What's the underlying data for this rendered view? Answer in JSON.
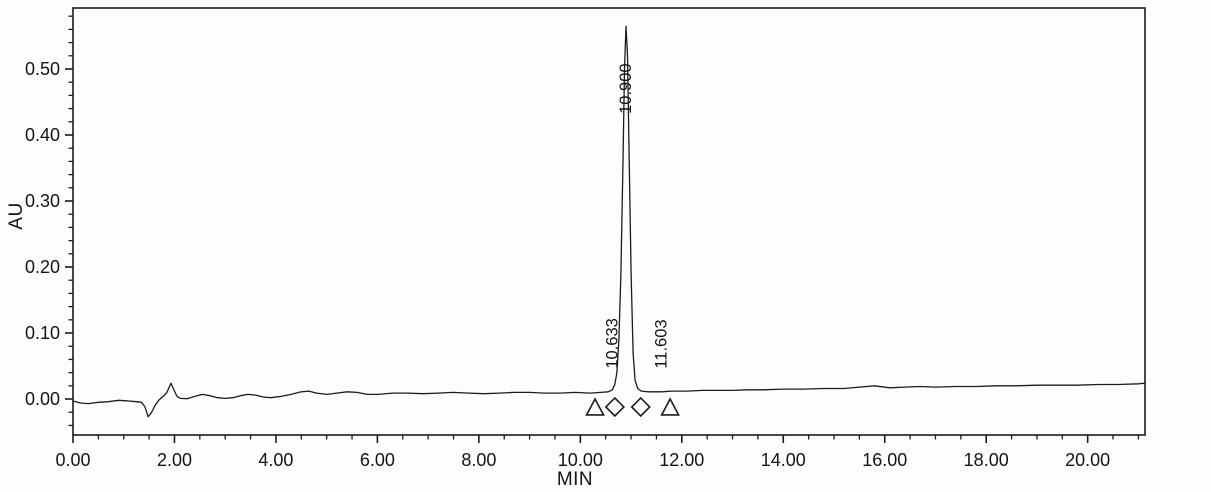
{
  "chart_data": {
    "type": "line",
    "title": "",
    "xlabel": "MIN",
    "ylabel": "AU",
    "x_range": [
      0,
      21.13
    ],
    "y_range": [
      -0.0545,
      0.5924
    ],
    "grid": false,
    "legend": "none",
    "line_color": "#1c1c1c",
    "axis_color": "#1c1c1c",
    "background_color": "#fdfdfd",
    "x_ticks_major": {
      "values": [
        0,
        2,
        4,
        6,
        8,
        10,
        12,
        14,
        16,
        18,
        20
      ],
      "labels": [
        "0.00",
        "2.00",
        "4.00",
        "6.00",
        "8.00",
        "10.00",
        "12.00",
        "14.00",
        "16.00",
        "18.00",
        "20.00"
      ]
    },
    "x_minor_step": 0.5,
    "y_ticks_major": {
      "values": [
        0,
        0.1,
        0.2,
        0.3,
        0.4,
        0.5
      ],
      "labels": [
        "0.00",
        "0.10",
        "0.20",
        "0.30",
        "0.40",
        "0.50"
      ]
    },
    "y_minor_step": 0.02,
    "series": [
      {
        "name": "detector-trace",
        "points": [
          [
            0.0,
            -0.003
          ],
          [
            0.15,
            -0.006
          ],
          [
            0.3,
            -0.007
          ],
          [
            0.5,
            -0.005
          ],
          [
            0.7,
            -0.004
          ],
          [
            0.9,
            -0.002
          ],
          [
            1.1,
            -0.003
          ],
          [
            1.25,
            -0.004
          ],
          [
            1.35,
            -0.005
          ],
          [
            1.42,
            -0.012
          ],
          [
            1.48,
            -0.027
          ],
          [
            1.55,
            -0.02
          ],
          [
            1.63,
            -0.008
          ],
          [
            1.7,
            -0.001
          ],
          [
            1.78,
            0.004
          ],
          [
            1.85,
            0.01
          ],
          [
            1.93,
            0.024
          ],
          [
            2.0,
            0.012
          ],
          [
            2.05,
            0.004
          ],
          [
            2.12,
            0.001
          ],
          [
            2.25,
            0.0005
          ],
          [
            2.4,
            0.004
          ],
          [
            2.55,
            0.007
          ],
          [
            2.7,
            0.005
          ],
          [
            2.85,
            0.002
          ],
          [
            3.0,
            0.001
          ],
          [
            3.15,
            0.002
          ],
          [
            3.3,
            0.005
          ],
          [
            3.45,
            0.007
          ],
          [
            3.6,
            0.006
          ],
          [
            3.75,
            0.003
          ],
          [
            3.9,
            0.002
          ],
          [
            4.1,
            0.004
          ],
          [
            4.3,
            0.007
          ],
          [
            4.5,
            0.011
          ],
          [
            4.65,
            0.012
          ],
          [
            4.8,
            0.009
          ],
          [
            5.0,
            0.007
          ],
          [
            5.2,
            0.009
          ],
          [
            5.4,
            0.011
          ],
          [
            5.6,
            0.01
          ],
          [
            5.8,
            0.007
          ],
          [
            6.0,
            0.007
          ],
          [
            6.3,
            0.009
          ],
          [
            6.6,
            0.009
          ],
          [
            6.9,
            0.008
          ],
          [
            7.2,
            0.009
          ],
          [
            7.5,
            0.01
          ],
          [
            7.8,
            0.009
          ],
          [
            8.1,
            0.008
          ],
          [
            8.4,
            0.009
          ],
          [
            8.7,
            0.01
          ],
          [
            9.0,
            0.01
          ],
          [
            9.3,
            0.009
          ],
          [
            9.6,
            0.009
          ],
          [
            9.9,
            0.01
          ],
          [
            10.2,
            0.009
          ],
          [
            10.4,
            0.01
          ],
          [
            10.55,
            0.011
          ],
          [
            10.633,
            0.014
          ],
          [
            10.68,
            0.022
          ],
          [
            10.72,
            0.04
          ],
          [
            10.76,
            0.09
          ],
          [
            10.8,
            0.19
          ],
          [
            10.84,
            0.36
          ],
          [
            10.87,
            0.5
          ],
          [
            10.9,
            0.565
          ],
          [
            10.93,
            0.52
          ],
          [
            10.96,
            0.38
          ],
          [
            11.0,
            0.19
          ],
          [
            11.04,
            0.07
          ],
          [
            11.08,
            0.028
          ],
          [
            11.13,
            0.016
          ],
          [
            11.2,
            0.012
          ],
          [
            11.35,
            0.011
          ],
          [
            11.5,
            0.011
          ],
          [
            11.603,
            0.011
          ],
          [
            11.8,
            0.012
          ],
          [
            12.1,
            0.012
          ],
          [
            12.4,
            0.013
          ],
          [
            12.7,
            0.013
          ],
          [
            13.0,
            0.013
          ],
          [
            13.3,
            0.014
          ],
          [
            13.6,
            0.014
          ],
          [
            14.0,
            0.015
          ],
          [
            14.4,
            0.015
          ],
          [
            14.8,
            0.016
          ],
          [
            15.2,
            0.016
          ],
          [
            15.5,
            0.018
          ],
          [
            15.8,
            0.02
          ],
          [
            16.1,
            0.017
          ],
          [
            16.4,
            0.018
          ],
          [
            16.7,
            0.019
          ],
          [
            17.0,
            0.018
          ],
          [
            17.4,
            0.019
          ],
          [
            17.8,
            0.019
          ],
          [
            18.2,
            0.02
          ],
          [
            18.6,
            0.02
          ],
          [
            19.0,
            0.021
          ],
          [
            19.4,
            0.021
          ],
          [
            19.8,
            0.021
          ],
          [
            20.2,
            0.022
          ],
          [
            20.6,
            0.022
          ],
          [
            21.0,
            0.023
          ],
          [
            21.13,
            0.024
          ]
        ]
      }
    ],
    "peak_annotations": [
      {
        "label": "10.633",
        "t": 10.633,
        "label_base_au": 0.046
      },
      {
        "label": "10.900",
        "t": 10.9,
        "label_base_au": 0.432
      },
      {
        "label": "11.603",
        "t": 11.603,
        "label_base_au": 0.046
      }
    ],
    "integration_markers": [
      {
        "shape": "triangle",
        "t": 10.29,
        "au": -0.006
      },
      {
        "shape": "diamond",
        "t": 10.68,
        "au": -0.006
      },
      {
        "shape": "diamond",
        "t": 11.19,
        "au": -0.006
      },
      {
        "shape": "triangle",
        "t": 11.77,
        "au": -0.006
      }
    ]
  }
}
